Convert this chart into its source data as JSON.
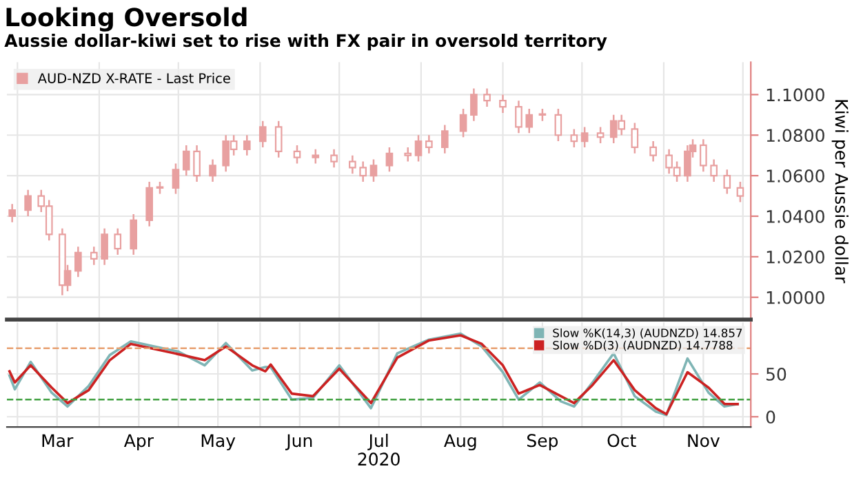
{
  "chart_data": [
    {
      "type": "candlestick",
      "title": "Looking Oversold",
      "subtitle": "Aussie dollar-kiwi set to rise with FX pair in oversold territory",
      "ylabel": "Kiwi per Aussie dollar",
      "x": [
        "2020-02-28",
        "2020-03-05",
        "2020-03-10",
        "2020-03-13",
        "2020-03-18",
        "2020-03-20",
        "2020-03-24",
        "2020-03-30",
        "2020-04-03",
        "2020-04-08",
        "2020-04-14",
        "2020-04-20",
        "2020-04-24",
        "2020-04-30",
        "2020-05-04",
        "2020-05-08",
        "2020-05-14",
        "2020-05-19",
        "2020-05-22",
        "2020-05-27",
        "2020-06-02",
        "2020-06-08",
        "2020-06-15",
        "2020-06-22",
        "2020-06-29",
        "2020-07-06",
        "2020-07-10",
        "2020-07-14",
        "2020-07-20",
        "2020-07-27",
        "2020-07-31",
        "2020-08-04",
        "2020-08-10",
        "2020-08-17",
        "2020-08-21",
        "2020-08-26",
        "2020-09-01",
        "2020-09-07",
        "2020-09-11",
        "2020-09-16",
        "2020-09-22",
        "2020-09-28",
        "2020-10-02",
        "2020-10-08",
        "2020-10-13",
        "2020-10-16",
        "2020-10-21",
        "2020-10-28",
        "2020-11-03",
        "2020-11-06",
        "2020-11-10",
        "2020-11-12",
        "2020-11-16",
        "2020-11-20",
        "2020-11-25",
        "2020-11-30"
      ],
      "series": [
        {
          "name": "AUD-NZD X-RATE - Last Price",
          "color": "#e8a0a0",
          "ohlc": [
            [
              1.04,
              1.046,
              1.037,
              1.043
            ],
            [
              1.043,
              1.053,
              1.04,
              1.05
            ],
            [
              1.05,
              1.053,
              1.042,
              1.045
            ],
            [
              1.045,
              1.048,
              1.028,
              1.031
            ],
            [
              1.031,
              1.034,
              1.001,
              1.006
            ],
            [
              1.006,
              1.016,
              1.003,
              1.013
            ],
            [
              1.013,
              1.025,
              1.01,
              1.022
            ],
            [
              1.022,
              1.025,
              1.016,
              1.019
            ],
            [
              1.019,
              1.034,
              1.016,
              1.031
            ],
            [
              1.031,
              1.034,
              1.021,
              1.024
            ],
            [
              1.024,
              1.041,
              1.021,
              1.038
            ],
            [
              1.038,
              1.057,
              1.035,
              1.054
            ],
            [
              1.054,
              1.057,
              1.051,
              1.054
            ],
            [
              1.054,
              1.066,
              1.051,
              1.063
            ],
            [
              1.063,
              1.075,
              1.06,
              1.072
            ],
            [
              1.072,
              1.075,
              1.057,
              1.06
            ],
            [
              1.06,
              1.068,
              1.057,
              1.065
            ],
            [
              1.065,
              1.08,
              1.062,
              1.077
            ],
            [
              1.077,
              1.08,
              1.07,
              1.073
            ],
            [
              1.073,
              1.08,
              1.07,
              1.077
            ],
            [
              1.077,
              1.087,
              1.074,
              1.084
            ],
            [
              1.084,
              1.087,
              1.069,
              1.072
            ],
            [
              1.072,
              1.075,
              1.066,
              1.069
            ],
            [
              1.069,
              1.073,
              1.066,
              1.07
            ],
            [
              1.07,
              1.073,
              1.064,
              1.067
            ],
            [
              1.067,
              1.07,
              1.061,
              1.064
            ],
            [
              1.064,
              1.067,
              1.057,
              1.06
            ],
            [
              1.06,
              1.068,
              1.057,
              1.065
            ],
            [
              1.065,
              1.074,
              1.062,
              1.071
            ],
            [
              1.071,
              1.074,
              1.067,
              1.07
            ],
            [
              1.07,
              1.08,
              1.067,
              1.077
            ],
            [
              1.077,
              1.08,
              1.071,
              1.074
            ],
            [
              1.074,
              1.085,
              1.071,
              1.082
            ],
            [
              1.082,
              1.093,
              1.079,
              1.09
            ],
            [
              1.09,
              1.103,
              1.087,
              1.1
            ],
            [
              1.1,
              1.103,
              1.094,
              1.097
            ],
            [
              1.097,
              1.1,
              1.091,
              1.094
            ],
            [
              1.094,
              1.097,
              1.081,
              1.084
            ],
            [
              1.084,
              1.093,
              1.081,
              1.09
            ],
            [
              1.09,
              1.093,
              1.087,
              1.09
            ],
            [
              1.09,
              1.093,
              1.077,
              1.08
            ],
            [
              1.08,
              1.083,
              1.074,
              1.077
            ],
            [
              1.077,
              1.084,
              1.074,
              1.081
            ],
            [
              1.081,
              1.084,
              1.076,
              1.079
            ],
            [
              1.079,
              1.09,
              1.076,
              1.087
            ],
            [
              1.087,
              1.09,
              1.08,
              1.083
            ],
            [
              1.083,
              1.086,
              1.071,
              1.074
            ],
            [
              1.074,
              1.077,
              1.067,
              1.07
            ],
            [
              1.07,
              1.073,
              1.061,
              1.064
            ],
            [
              1.064,
              1.067,
              1.057,
              1.06
            ],
            [
              1.06,
              1.075,
              1.057,
              1.072
            ],
            [
              1.072,
              1.078,
              1.069,
              1.075
            ],
            [
              1.075,
              1.078,
              1.062,
              1.065
            ],
            [
              1.065,
              1.068,
              1.057,
              1.06
            ],
            [
              1.06,
              1.063,
              1.051,
              1.054
            ],
            [
              1.054,
              1.057,
              1.047,
              1.05
            ]
          ]
        }
      ],
      "xlim": [
        "2020-02-26",
        "2020-12-04"
      ],
      "xticks": [
        {
          "value": "2020-03-01",
          "label": null
        },
        {
          "value": "2020-04-01",
          "label": null
        },
        {
          "value": "2020-05-01",
          "label": null
        },
        {
          "value": "2020-06-01",
          "label": null
        },
        {
          "value": "2020-07-01",
          "label": null
        },
        {
          "value": "2020-08-01",
          "label": null
        },
        {
          "value": "2020-09-01",
          "label": null
        },
        {
          "value": "2020-10-01",
          "label": null
        },
        {
          "value": "2020-11-01",
          "label": null
        },
        {
          "value": "2020-12-01",
          "label": null
        }
      ],
      "ylim": [
        0.989,
        1.116
      ],
      "yticks": [
        {
          "value": 1.0,
          "label": "1.0000"
        },
        {
          "value": 1.02,
          "label": "1.0200"
        },
        {
          "value": 1.04,
          "label": "1.0400"
        },
        {
          "value": 1.06,
          "label": "1.0600"
        },
        {
          "value": 1.08,
          "label": "1.0800"
        },
        {
          "value": 1.1,
          "label": "1.1000"
        }
      ],
      "tick_labels": "y",
      "grid": true,
      "legend": "top left"
    },
    {
      "type": "line",
      "xlabel": "2020",
      "x": [
        "2020-02-27",
        "2020-02-29",
        "2020-03-06",
        "2020-03-14",
        "2020-03-20",
        "2020-03-28",
        "2020-04-05",
        "2020-04-13",
        "2020-05-01",
        "2020-05-11",
        "2020-05-19",
        "2020-05-29",
        "2020-06-03",
        "2020-06-05",
        "2020-06-13",
        "2020-06-21",
        "2020-07-01",
        "2020-07-13",
        "2020-07-23",
        "2020-08-04",
        "2020-08-16",
        "2020-08-24",
        "2020-09-01",
        "2020-09-07",
        "2020-09-15",
        "2020-09-23",
        "2020-09-28",
        "2020-10-05",
        "2020-10-13",
        "2020-10-21",
        "2020-10-29",
        "2020-11-02",
        "2020-11-10",
        "2020-11-18",
        "2020-11-24",
        "2020-11-29"
      ],
      "series": [
        {
          "name": "Slow %K(14,3) (AUDNZD) 14.857",
          "color": "#7fb5b5",
          "values": [
            48,
            32,
            64,
            28,
            12,
            36,
            72,
            88,
            76,
            60,
            86,
            54,
            58,
            58,
            20,
            22,
            60,
            10,
            74,
            90,
            97,
            82,
            52,
            20,
            40,
            18,
            12,
            40,
            74,
            24,
            6,
            2,
            68,
            28,
            12,
            14.857
          ]
        },
        {
          "name": "Slow %D(3) (AUDNZD) 14.7788",
          "color": "#cc2222",
          "values": [
            53,
            40,
            60,
            34,
            16,
            31,
            66,
            85,
            73,
            66,
            82,
            60,
            53,
            61,
            27,
            24,
            56,
            16,
            69,
            89,
            95,
            85,
            60,
            27,
            37,
            24,
            16,
            37,
            66,
            31,
            10,
            3,
            52,
            34,
            15,
            14.7788
          ]
        }
      ],
      "ref_lines": [
        {
          "axis": "y",
          "value": 80,
          "color": "#e8a070",
          "line_style": "dashed"
        },
        {
          "axis": "y",
          "value": 20,
          "color": "#40a040",
          "line_style": "dashed"
        }
      ],
      "xlim": [
        "2020-02-26",
        "2020-12-04"
      ],
      "xticks": [
        {
          "value": "2020-03-01",
          "label": null
        },
        {
          "value": "2020-03-16",
          "label": "Mar"
        },
        {
          "value": "2020-04-01",
          "label": null
        },
        {
          "value": "2020-04-16",
          "label": "Apr"
        },
        {
          "value": "2020-05-01",
          "label": null
        },
        {
          "value": "2020-05-16",
          "label": "May"
        },
        {
          "value": "2020-06-01",
          "label": null
        },
        {
          "value": "2020-06-16",
          "label": "Jun"
        },
        {
          "value": "2020-07-01",
          "label": null
        },
        {
          "value": "2020-07-16",
          "label": "Jul"
        },
        {
          "value": "2020-08-01",
          "label": null
        },
        {
          "value": "2020-08-16",
          "label": "Aug"
        },
        {
          "value": "2020-09-01",
          "label": null
        },
        {
          "value": "2020-09-16",
          "label": "Sep"
        },
        {
          "value": "2020-10-01",
          "label": null
        },
        {
          "value": "2020-10-16",
          "label": "Oct"
        },
        {
          "value": "2020-11-01",
          "label": null
        },
        {
          "value": "2020-11-16",
          "label": "Nov"
        },
        {
          "value": "2020-12-01",
          "label": null
        }
      ],
      "ylim": [
        -12,
        110
      ],
      "yticks": [
        0,
        50
      ],
      "grid": true,
      "legend": "top right"
    }
  ]
}
